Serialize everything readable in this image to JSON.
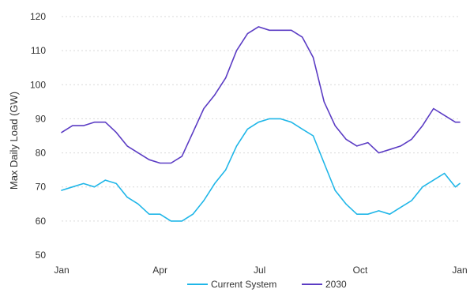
{
  "chart_data": {
    "type": "line",
    "title": "",
    "xlabel": "",
    "ylabel": "Max Daily Load (GW)",
    "x_ticks": [
      "Jan",
      "Apr",
      "Jul",
      "Oct",
      "Jan"
    ],
    "x_tick_days": [
      0,
      90,
      181,
      273,
      364
    ],
    "xlim": [
      0,
      364
    ],
    "ylim": [
      50,
      120
    ],
    "y_ticks": [
      50,
      60,
      70,
      80,
      90,
      100,
      110,
      120
    ],
    "grid": "horizontal, dashed",
    "legend_position": "bottom",
    "series": [
      {
        "name": "Current System",
        "color": "#1fb6e8",
        "x": [
          0,
          10,
          20,
          30,
          40,
          50,
          60,
          70,
          80,
          90,
          100,
          110,
          120,
          130,
          140,
          150,
          160,
          170,
          180,
          190,
          200,
          210,
          220,
          230,
          240,
          250,
          260,
          270,
          280,
          290,
          300,
          310,
          320,
          330,
          340,
          350,
          360,
          364
        ],
        "y": [
          69,
          70,
          71,
          70,
          72,
          71,
          67,
          65,
          62,
          62,
          60,
          60,
          62,
          66,
          71,
          75,
          82,
          87,
          89,
          90,
          90,
          89,
          87,
          85,
          77,
          69,
          65,
          62,
          62,
          63,
          62,
          64,
          66,
          70,
          72,
          74,
          70,
          71
        ]
      },
      {
        "name": "2030",
        "color": "#5b3cc4",
        "x": [
          0,
          10,
          20,
          30,
          40,
          50,
          60,
          70,
          80,
          90,
          100,
          110,
          120,
          130,
          140,
          150,
          160,
          170,
          180,
          190,
          200,
          210,
          220,
          230,
          240,
          250,
          260,
          270,
          280,
          290,
          300,
          310,
          320,
          330,
          340,
          350,
          360,
          364
        ],
        "y": [
          86,
          88,
          88,
          89,
          89,
          86,
          82,
          80,
          78,
          77,
          77,
          79,
          86,
          93,
          97,
          102,
          110,
          115,
          117,
          116,
          116,
          116,
          114,
          108,
          95,
          88,
          84,
          82,
          83,
          80,
          81,
          82,
          84,
          88,
          93,
          91,
          89,
          89
        ]
      }
    ]
  }
}
